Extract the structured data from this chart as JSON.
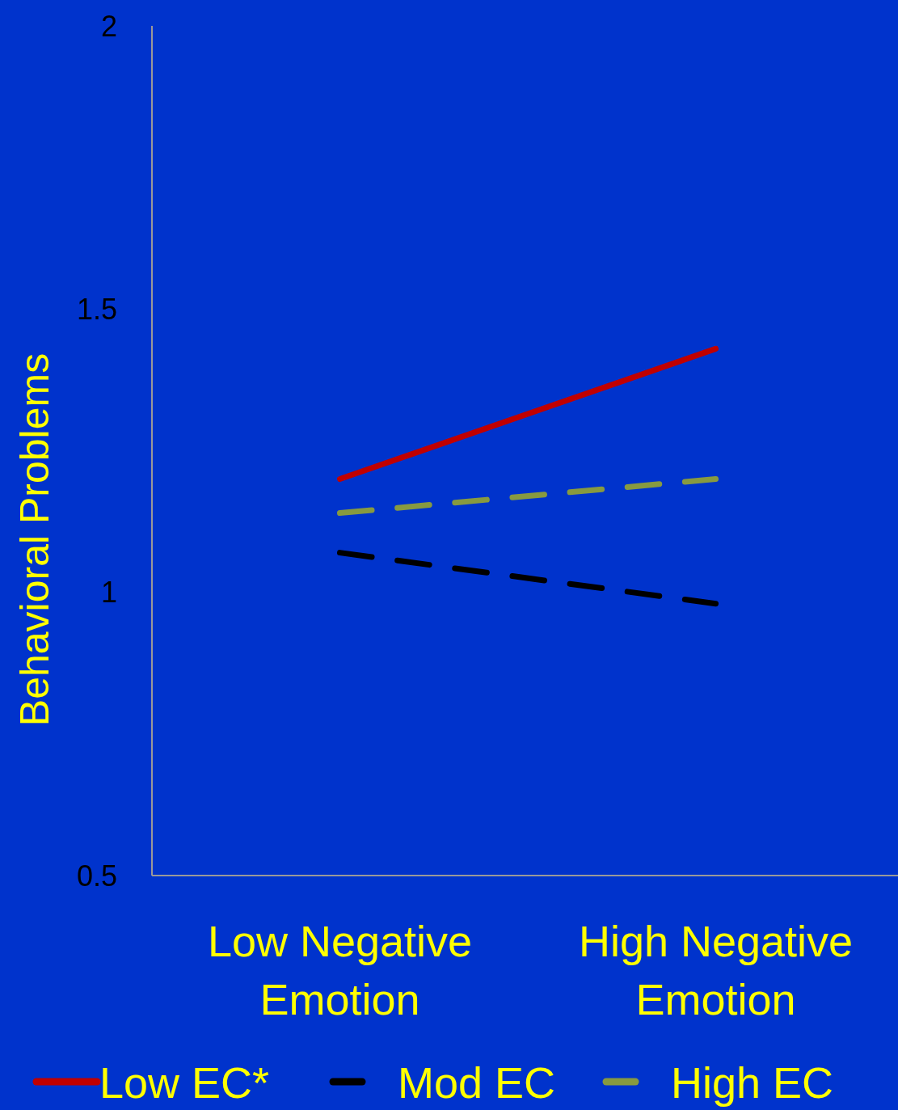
{
  "chart_data": {
    "type": "line",
    "ylabel": "Behavioral Problems",
    "categories": [
      "Low Negative Emotion",
      "High Negative Emotion"
    ],
    "series": [
      {
        "name": "Low EC*",
        "color": "#c00000",
        "values": [
          1.2,
          1.43
        ],
        "line_style": "solid"
      },
      {
        "name": "Mod EC",
        "color": "#000000",
        "values": [
          1.07,
          0.98
        ],
        "line_style": "dashed"
      },
      {
        "name": "High EC",
        "color": "#879a40",
        "values": [
          1.14,
          1.2
        ],
        "line_style": "dashed"
      }
    ],
    "ylim": [
      0.5,
      2
    ],
    "yticks": [
      0.5,
      1,
      1.5,
      2
    ],
    "grid": false,
    "legend": "bottom",
    "marker": "none"
  }
}
